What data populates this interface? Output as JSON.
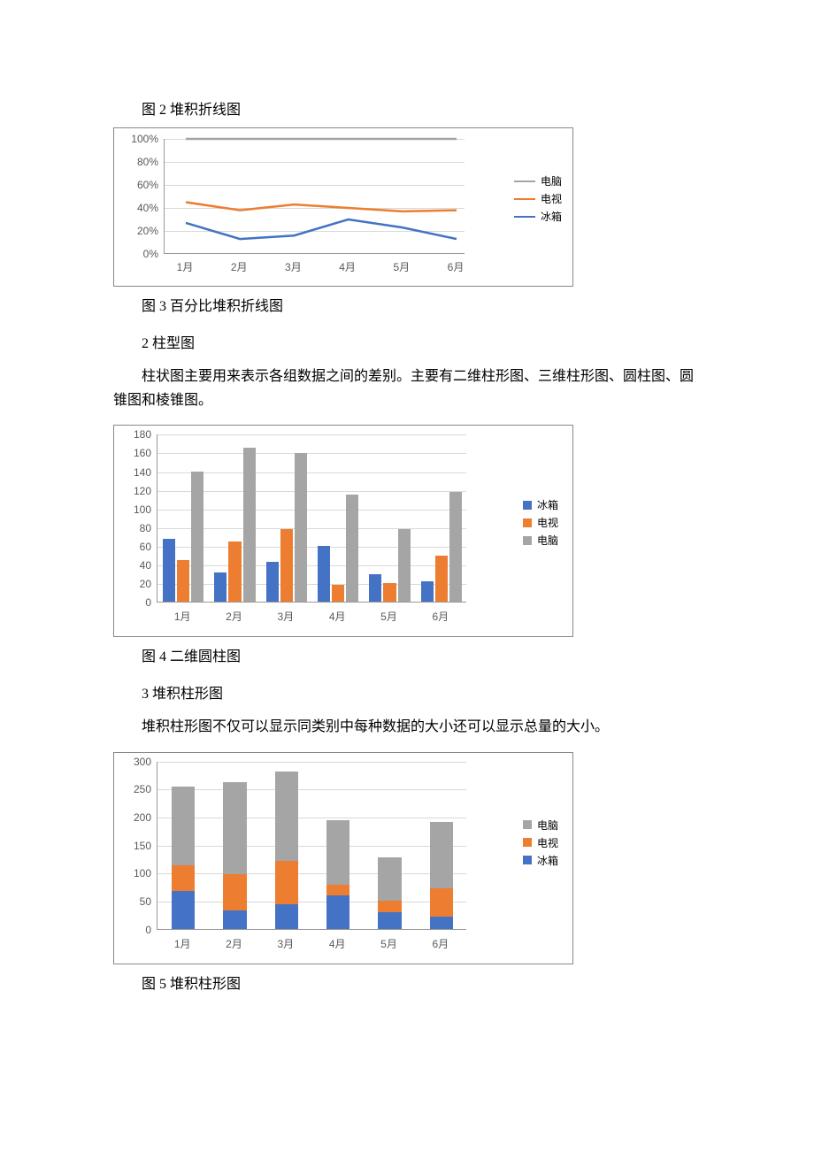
{
  "captions": {
    "fig2": "图 2 堆积折线图",
    "fig3": "图 3 百分比堆积折线图",
    "fig4": "图 4 二维圆柱图",
    "fig5": "图 5 堆积柱形图"
  },
  "headings": {
    "h2": "2 柱型图",
    "h3": "3 堆积柱形图"
  },
  "paragraphs": {
    "p_bar": "柱状图主要用来表示各组数据之间的差别。主要有二维柱形图、三维柱形图、圆柱图、圆锥图和棱锥图。",
    "p_stack": "堆积柱形图不仅可以显示同类别中每种数据的大小还可以显示总量的大小。"
  },
  "categories": [
    "1月",
    "2月",
    "3月",
    "4月",
    "5月",
    "6月"
  ],
  "series_labels": {
    "fridge": "冰箱",
    "tv": "电视",
    "pc": "电脑"
  },
  "colors": {
    "fridge": "#4472c4",
    "tv": "#ed7d31",
    "pc": "#a5a5a5",
    "grid": "#d9d9d9",
    "axis": "#999999",
    "text": "#595959",
    "border": "#888888",
    "bg": "#ffffff"
  },
  "pct_chart": {
    "type": "line",
    "ylim": [
      0,
      100
    ],
    "ytick_step": 20,
    "y_format": "percent",
    "yticks": [
      "0%",
      "20%",
      "40%",
      "60%",
      "80%",
      "100%"
    ],
    "series": {
      "pc": [
        100,
        100,
        100,
        100,
        100,
        100
      ],
      "tv": [
        45,
        38,
        43,
        40,
        37,
        38
      ],
      "fridge": [
        27,
        13,
        16,
        30,
        23,
        13
      ]
    },
    "line_width": 2.5,
    "font_size_axis": 12,
    "legend_order": [
      "pc",
      "tv",
      "fridge"
    ]
  },
  "grouped_bar": {
    "type": "bar",
    "ylim": [
      0,
      180
    ],
    "ytick_step": 20,
    "yticks": [
      "0",
      "20",
      "40",
      "60",
      "80",
      "100",
      "120",
      "140",
      "160",
      "180"
    ],
    "series": {
      "fridge": [
        68,
        32,
        43,
        60,
        30,
        22
      ],
      "tv": [
        45,
        65,
        78,
        18,
        20,
        50
      ],
      "pc": [
        140,
        165,
        160,
        115,
        78,
        118
      ]
    },
    "bar_gap": 2,
    "group_gap": 12,
    "font_size_axis": 12,
    "legend_order": [
      "fridge",
      "tv",
      "pc"
    ]
  },
  "stacked_bar": {
    "type": "stacked-bar",
    "ylim": [
      0,
      300
    ],
    "ytick_step": 50,
    "yticks": [
      "0",
      "50",
      "100",
      "150",
      "200",
      "250",
      "300"
    ],
    "series": {
      "fridge": [
        68,
        32,
        43,
        60,
        30,
        22
      ],
      "tv": [
        45,
        65,
        78,
        18,
        20,
        50
      ],
      "pc": [
        140,
        165,
        160,
        115,
        78,
        118
      ]
    },
    "stack_order": [
      "fridge",
      "tv",
      "pc"
    ],
    "bar_width_ratio": 0.45,
    "font_size_axis": 12,
    "legend_order": [
      "pc",
      "tv",
      "fridge"
    ]
  }
}
